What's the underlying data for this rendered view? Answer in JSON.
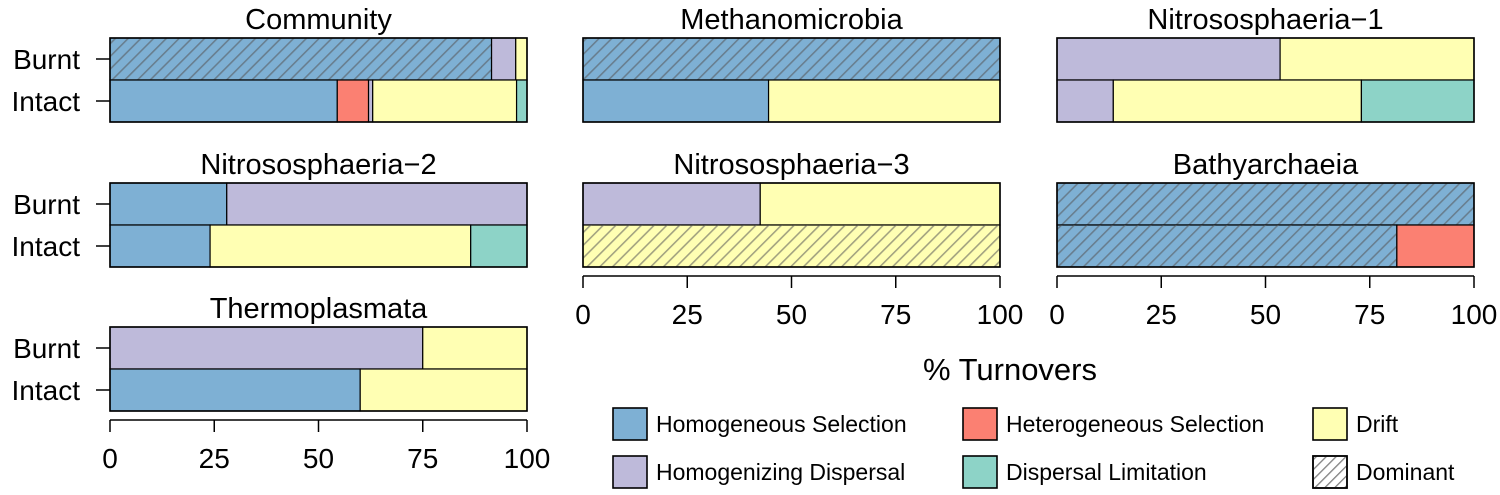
{
  "colors": {
    "homogeneous_selection": "#7eb0d4",
    "heterogeneous_selection": "#fb8072",
    "drift": "#ffffb3",
    "homogenizing_dispersal": "#bebada",
    "dispersal_limitation": "#8dd3c7",
    "dominant_hatch": "#555555",
    "outline": "#000000"
  },
  "chart_data": {
    "type": "bar",
    "orientation": "horizontal",
    "stacked": true,
    "xlabel": "% Turnovers",
    "xlim": [
      0,
      100
    ],
    "xticks": [
      0,
      25,
      50,
      75,
      100
    ],
    "tick_labels": [
      "0",
      "25",
      "50",
      "75",
      "100"
    ],
    "row_labels": [
      "Burnt",
      "Intact"
    ],
    "legend": {
      "placement": "bottom-right",
      "entries": [
        {
          "key": "homogeneous_selection",
          "label": "Homogeneous Selection"
        },
        {
          "key": "heterogeneous_selection",
          "label": "Heterogeneous Selection"
        },
        {
          "key": "drift",
          "label": "Drift"
        },
        {
          "key": "homogenizing_dispersal",
          "label": "Homogenizing Dispersal"
        },
        {
          "key": "dispersal_limitation",
          "label": "Dispersal Limitation"
        },
        {
          "key": "dominant",
          "label": "Dominant"
        }
      ]
    },
    "panels": [
      {
        "title": "Community",
        "bars": [
          {
            "label": "Burnt",
            "segments": [
              {
                "process": "homogeneous_selection",
                "value": 91.5,
                "dominant": true
              },
              {
                "process": "homogenizing_dispersal",
                "value": 5.8
              },
              {
                "process": "drift",
                "value": 2.7
              }
            ]
          },
          {
            "label": "Intact",
            "segments": [
              {
                "process": "homogeneous_selection",
                "value": 54.5
              },
              {
                "process": "heterogeneous_selection",
                "value": 7.5
              },
              {
                "process": "homogenizing_dispersal",
                "value": 1.0
              },
              {
                "process": "drift",
                "value": 34.5
              },
              {
                "process": "dispersal_limitation",
                "value": 2.5
              }
            ]
          }
        ]
      },
      {
        "title": "Methanomicrobia",
        "bars": [
          {
            "label": "Burnt",
            "segments": [
              {
                "process": "homogeneous_selection",
                "value": 100,
                "dominant": true
              }
            ]
          },
          {
            "label": "Intact",
            "segments": [
              {
                "process": "homogeneous_selection",
                "value": 44.5
              },
              {
                "process": "drift",
                "value": 55.5
              }
            ]
          }
        ]
      },
      {
        "title": "Nitrososphaeria−1",
        "bars": [
          {
            "label": "Burnt",
            "segments": [
              {
                "process": "homogenizing_dispersal",
                "value": 53.5
              },
              {
                "process": "drift",
                "value": 46.5
              }
            ]
          },
          {
            "label": "Intact",
            "segments": [
              {
                "process": "homogenizing_dispersal",
                "value": 13.5
              },
              {
                "process": "drift",
                "value": 59.5
              },
              {
                "process": "dispersal_limitation",
                "value": 27.0
              }
            ]
          }
        ]
      },
      {
        "title": "Nitrososphaeria−2",
        "bars": [
          {
            "label": "Burnt",
            "segments": [
              {
                "process": "homogeneous_selection",
                "value": 28.0
              },
              {
                "process": "homogenizing_dispersal",
                "value": 72.0
              }
            ]
          },
          {
            "label": "Intact",
            "segments": [
              {
                "process": "homogeneous_selection",
                "value": 24.0
              },
              {
                "process": "drift",
                "value": 62.5
              },
              {
                "process": "dispersal_limitation",
                "value": 13.5
              }
            ]
          }
        ]
      },
      {
        "title": "Nitrososphaeria−3",
        "bars": [
          {
            "label": "Burnt",
            "segments": [
              {
                "process": "homogenizing_dispersal",
                "value": 42.5
              },
              {
                "process": "drift",
                "value": 57.5
              }
            ]
          },
          {
            "label": "Intact",
            "segments": [
              {
                "process": "drift",
                "value": 100,
                "dominant": true
              }
            ]
          }
        ]
      },
      {
        "title": "Bathyarchaeia",
        "bars": [
          {
            "label": "Burnt",
            "segments": [
              {
                "process": "homogeneous_selection",
                "value": 100,
                "dominant": true
              }
            ]
          },
          {
            "label": "Intact",
            "segments": [
              {
                "process": "homogeneous_selection",
                "value": 81.5,
                "dominant": true
              },
              {
                "process": "heterogeneous_selection",
                "value": 18.5
              }
            ]
          }
        ]
      },
      {
        "title": "Thermoplasmata",
        "bars": [
          {
            "label": "Burnt",
            "segments": [
              {
                "process": "homogenizing_dispersal",
                "value": 75.0
              },
              {
                "process": "drift",
                "value": 25.0
              }
            ]
          },
          {
            "label": "Intact",
            "segments": [
              {
                "process": "homogeneous_selection",
                "value": 60.0
              },
              {
                "process": "drift",
                "value": 40.0
              }
            ]
          }
        ]
      }
    ]
  }
}
